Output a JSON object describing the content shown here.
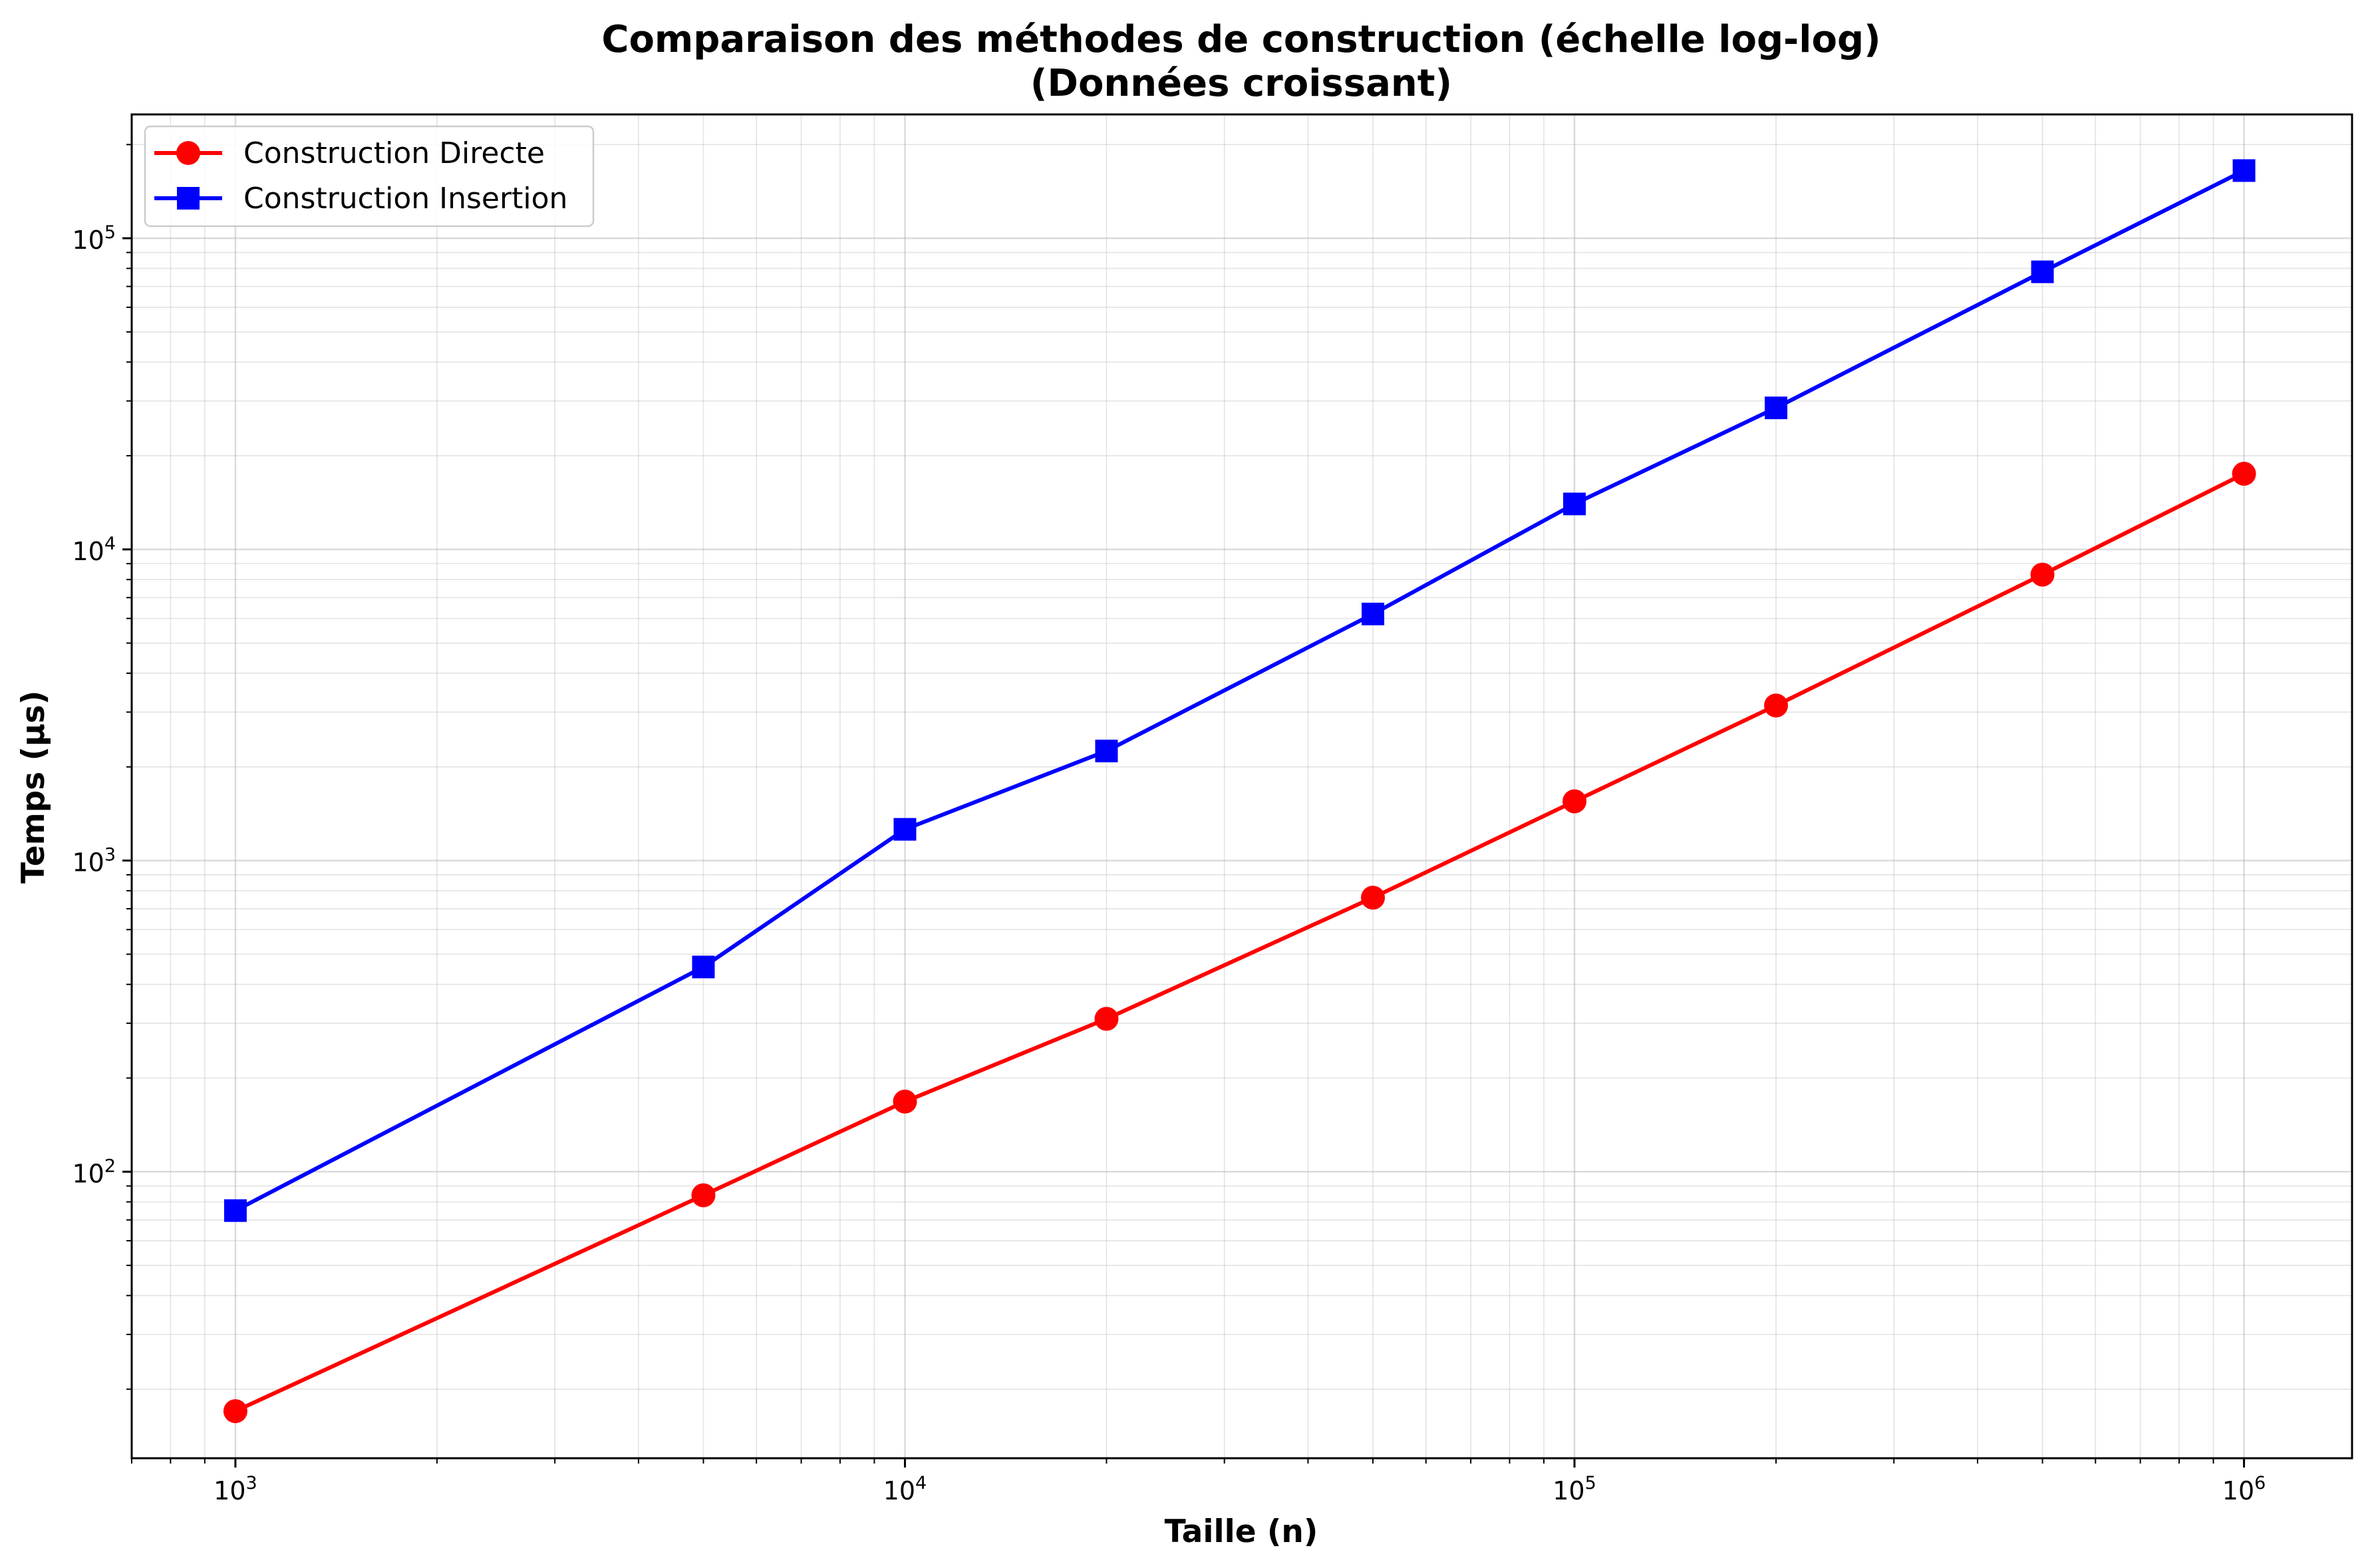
{
  "chart_data": {
    "type": "line",
    "title": "Comparaison des méthodes de construction (échelle log-log)",
    "subtitle": "(Données croissant)",
    "xlabel": "Taille (n)",
    "ylabel": "Temps (µs)",
    "x_scale": "log",
    "y_scale": "log",
    "xlim": [
      700,
      1450000
    ],
    "ylim": [
      12,
      250000
    ],
    "x_ticks": [
      1000,
      10000,
      100000,
      1000000
    ],
    "y_ticks": [
      100,
      1000,
      10000,
      100000
    ],
    "grid": "on (major and minor)",
    "legend_position": "top-left",
    "x": [
      1000,
      5000,
      10000,
      20000,
      50000,
      100000,
      200000,
      500000,
      1000000
    ],
    "series": [
      {
        "name": "Construction Directe",
        "color": "#ff0000",
        "marker": "circle",
        "values": [
          17,
          84,
          168,
          310,
          760,
          1550,
          3150,
          8300,
          17500
        ]
      },
      {
        "name": "Construction Insertion",
        "color": "#0000ff",
        "marker": "square",
        "values": [
          75,
          455,
          1260,
          2250,
          6200,
          14000,
          28500,
          78000,
          165000
        ]
      }
    ]
  }
}
